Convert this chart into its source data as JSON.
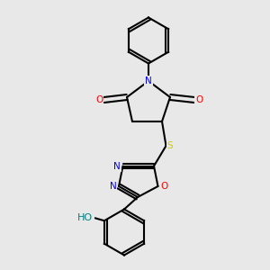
{
  "bg_color": "#e8e8e8",
  "bond_color": "#000000",
  "bond_width": 1.5,
  "atom_colors": {
    "N": "#0000ff",
    "O": "#ff0000",
    "S": "#cccc00",
    "HO": "#008080",
    "C": "#000000"
  },
  "font_size": 7.5
}
